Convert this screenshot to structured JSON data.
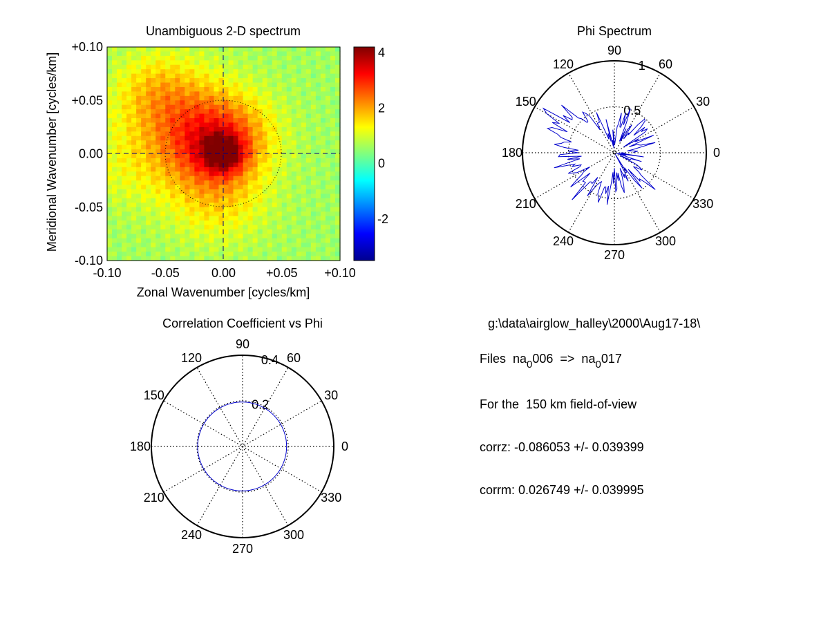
{
  "chart_data": [
    {
      "type": "heatmap",
      "title": "Unambiguous 2-D spectrum",
      "xlabel": "Zonal Wavenumber [cycles/km]",
      "ylabel": "Meridional Wavenumber [cycles/km]",
      "xlim": [
        -0.1,
        0.1
      ],
      "ylim": [
        -0.1,
        0.1
      ],
      "xticks": [
        "-0.10",
        "-0.05",
        "0.00",
        "+0.05",
        "+0.10"
      ],
      "yticks": [
        "+0.10",
        "+0.05",
        "0.00",
        "-0.05",
        "-0.10"
      ],
      "colorbar": {
        "range": [
          -3.5,
          4.2
        ],
        "ticks": [
          "4",
          "2",
          "0",
          "-2"
        ],
        "colormap": "jet"
      },
      "dotted_circle_radius": 0.05,
      "blobs": [
        {
          "x": 0.0,
          "y": 0.0,
          "amp": 2.1,
          "sigma": 0.012
        },
        {
          "x": -0.01,
          "y": 0.01,
          "amp": 1.6,
          "sigma": 0.028
        },
        {
          "x": -0.03,
          "y": 0.03,
          "amp": 1.1,
          "sigma": 0.035
        },
        {
          "x": -0.06,
          "y": 0.06,
          "amp": 0.8,
          "sigma": 0.025
        },
        {
          "x": -0.005,
          "y": -0.04,
          "amp": 0.9,
          "sigma": 0.03
        },
        {
          "x": 0.02,
          "y": 0.02,
          "amp": 0.5,
          "sigma": 0.025
        },
        {
          "x": -0.08,
          "y": -0.01,
          "amp": 0.5,
          "sigma": 0.03
        }
      ],
      "background_level": 0.6
    },
    {
      "type": "polar-line",
      "title": "Phi Spectrum",
      "angle_labels": [
        "0",
        "30",
        "60",
        "90",
        "120",
        "150",
        "180",
        "210",
        "240",
        "270",
        "300",
        "330"
      ],
      "radius_labels": [
        "0.5",
        "1"
      ],
      "rmax": 1,
      "series_color": "#0000cc",
      "anchors_deg": [
        0,
        15,
        30,
        45,
        60,
        75,
        90,
        105,
        120,
        135,
        150,
        165,
        180,
        195,
        210,
        225,
        240,
        255,
        270,
        285,
        300,
        315,
        330,
        345,
        360
      ],
      "anchors_r": [
        0.14,
        0.32,
        0.28,
        0.45,
        0.2,
        0.42,
        0.12,
        0.18,
        0.4,
        0.55,
        0.78,
        0.6,
        0.48,
        0.5,
        0.42,
        0.5,
        0.4,
        0.48,
        0.28,
        0.35,
        0.18,
        0.48,
        0.25,
        0.12,
        0.14
      ]
    },
    {
      "type": "polar-line",
      "title": "Correlation Coefficient vs Phi",
      "angle_labels": [
        "0",
        "30",
        "60",
        "90",
        "120",
        "150",
        "180",
        "210",
        "240",
        "270",
        "300",
        "330"
      ],
      "radius_labels": [
        "0.2",
        "0.4"
      ],
      "rmax": 0.4,
      "series_color": "#0000cc",
      "series": [
        {
          "center": [
            -0.002,
            0.0
          ],
          "radius": 0.195
        }
      ]
    }
  ],
  "info": {
    "path": "g:\\data\\airglow_halley\\2000\\Aug17-18\\",
    "files_prefix": "Files  na",
    "file_sub1": "0",
    "file_mid": "006  =>  na",
    "file_sub2": "0",
    "file_end": "017",
    "fov": "For the  150 km field-of-view",
    "corrz": "corrz: -0.086053 +/- 0.039399",
    "corrm": "corrm: 0.026749 +/- 0.039995"
  }
}
